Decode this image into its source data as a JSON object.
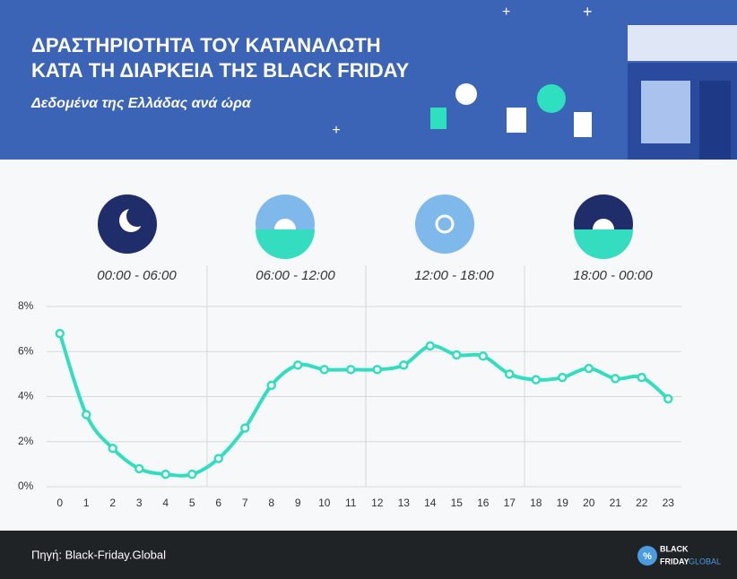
{
  "chart_data": {
    "type": "line",
    "title": [
      "ΔΡΑΣΤΗΡΙΟΤΗΤΑ ΤΟΥ ΚΑΤΑΝΑΛΩΤΗ",
      "ΚΑΤΑ ΤΗ ΔΙΑΡΚΕΙΑ ΤΗΣ BLACK FRIDAY"
    ],
    "subtitle": "Δεδομένα της Ελλάδας ανά ώρα",
    "periods": [
      "00:00 - 06:00",
      "06:00 - 12:00",
      "12:00 - 18:00",
      "18:00 - 00:00"
    ],
    "x": [
      0,
      1,
      2,
      3,
      4,
      5,
      6,
      7,
      8,
      9,
      10,
      11,
      12,
      13,
      14,
      15,
      16,
      17,
      18,
      19,
      20,
      21,
      22,
      23
    ],
    "series": [
      {
        "name": "Δραστηριότητα",
        "color": "#34dcc0",
        "values": [
          6.8,
          3.2,
          1.7,
          0.8,
          0.55,
          0.55,
          1.25,
          2.6,
          4.5,
          5.4,
          5.2,
          5.2,
          5.2,
          5.4,
          6.25,
          5.85,
          5.8,
          5.0,
          4.75,
          4.85,
          5.25,
          4.8,
          4.85,
          3.9
        ]
      }
    ],
    "xlim": [
      -0.5,
      23.5
    ],
    "xticks": [
      0,
      1,
      2,
      3,
      4,
      5,
      6,
      7,
      8,
      9,
      10,
      11,
      12,
      13,
      14,
      15,
      16,
      17,
      18,
      19,
      20,
      21,
      22,
      23
    ],
    "ylim": [
      0,
      8
    ],
    "yticks": [
      {
        "value": 0,
        "label": "0%"
      },
      {
        "value": 2,
        "label": "2%"
      },
      {
        "value": 4,
        "label": "4%"
      },
      {
        "value": 6,
        "label": "6%"
      },
      {
        "value": 8,
        "label": "8%"
      }
    ],
    "grid": true
  },
  "footer": {
    "source": "Πηγή: Black-Friday.Global",
    "logo_symbol": "%",
    "logo_text": [
      "BLACK",
      "FRIDAY",
      "GLOBAL"
    ]
  }
}
